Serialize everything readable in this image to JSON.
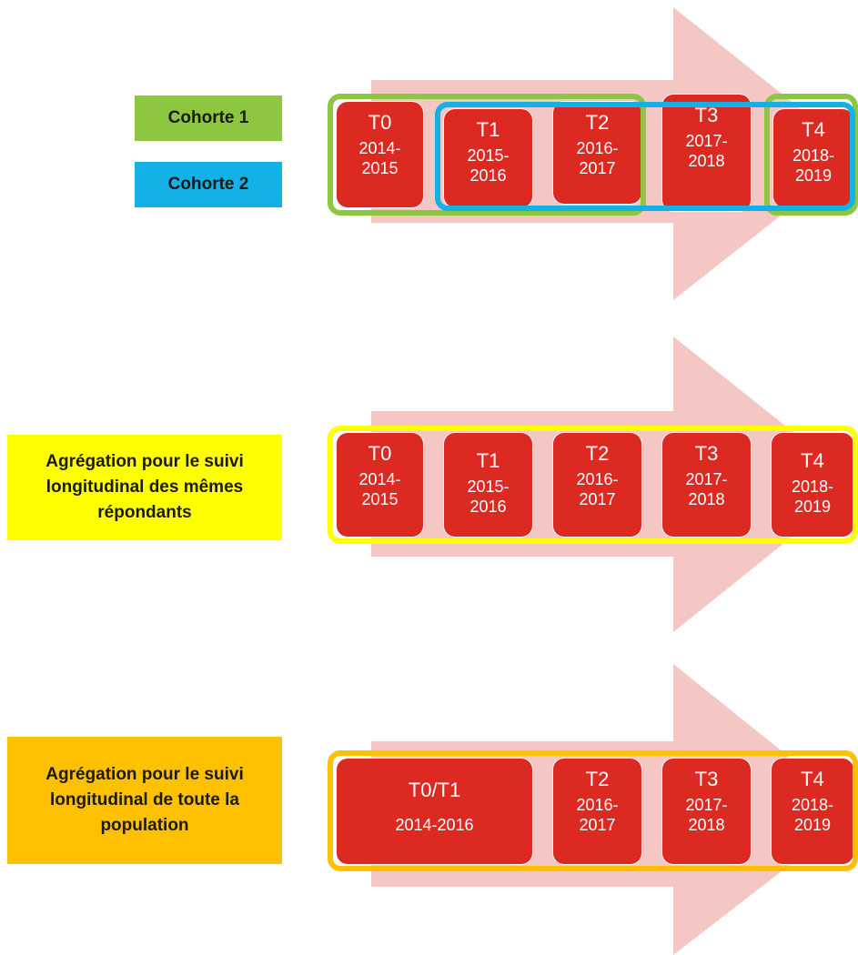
{
  "panels": [
    {
      "labels": [
        "Cohorte 1",
        "Cohorte 2"
      ],
      "periods": [
        {
          "code": "T0",
          "years": "2014-2015"
        },
        {
          "code": "T1",
          "years": "2015-2016"
        },
        {
          "code": "T2",
          "years": "2016-2017"
        },
        {
          "code": "T3",
          "years": "2017-2018"
        },
        {
          "code": "T4",
          "years": "2018-2019"
        }
      ]
    },
    {
      "labels": [
        "Agrégation pour le suivi longitudinal des mêmes répondants"
      ],
      "periods": [
        {
          "code": "T0",
          "years": "2014-2015"
        },
        {
          "code": "T1",
          "years": "2015-2016"
        },
        {
          "code": "T2",
          "years": "2016-2017"
        },
        {
          "code": "T3",
          "years": "2017-2018"
        },
        {
          "code": "T4",
          "years": "2018-2019"
        }
      ]
    },
    {
      "labels": [
        "Agrégation pour le suivi longitudinal de toute la population"
      ],
      "periods": [
        {
          "code": "T0/T1",
          "years": "2014-2016"
        },
        {
          "code": "T2",
          "years": "2016-2017"
        },
        {
          "code": "T3",
          "years": "2017-2018"
        },
        {
          "code": "T4",
          "years": "2018-2019"
        }
      ]
    }
  ]
}
